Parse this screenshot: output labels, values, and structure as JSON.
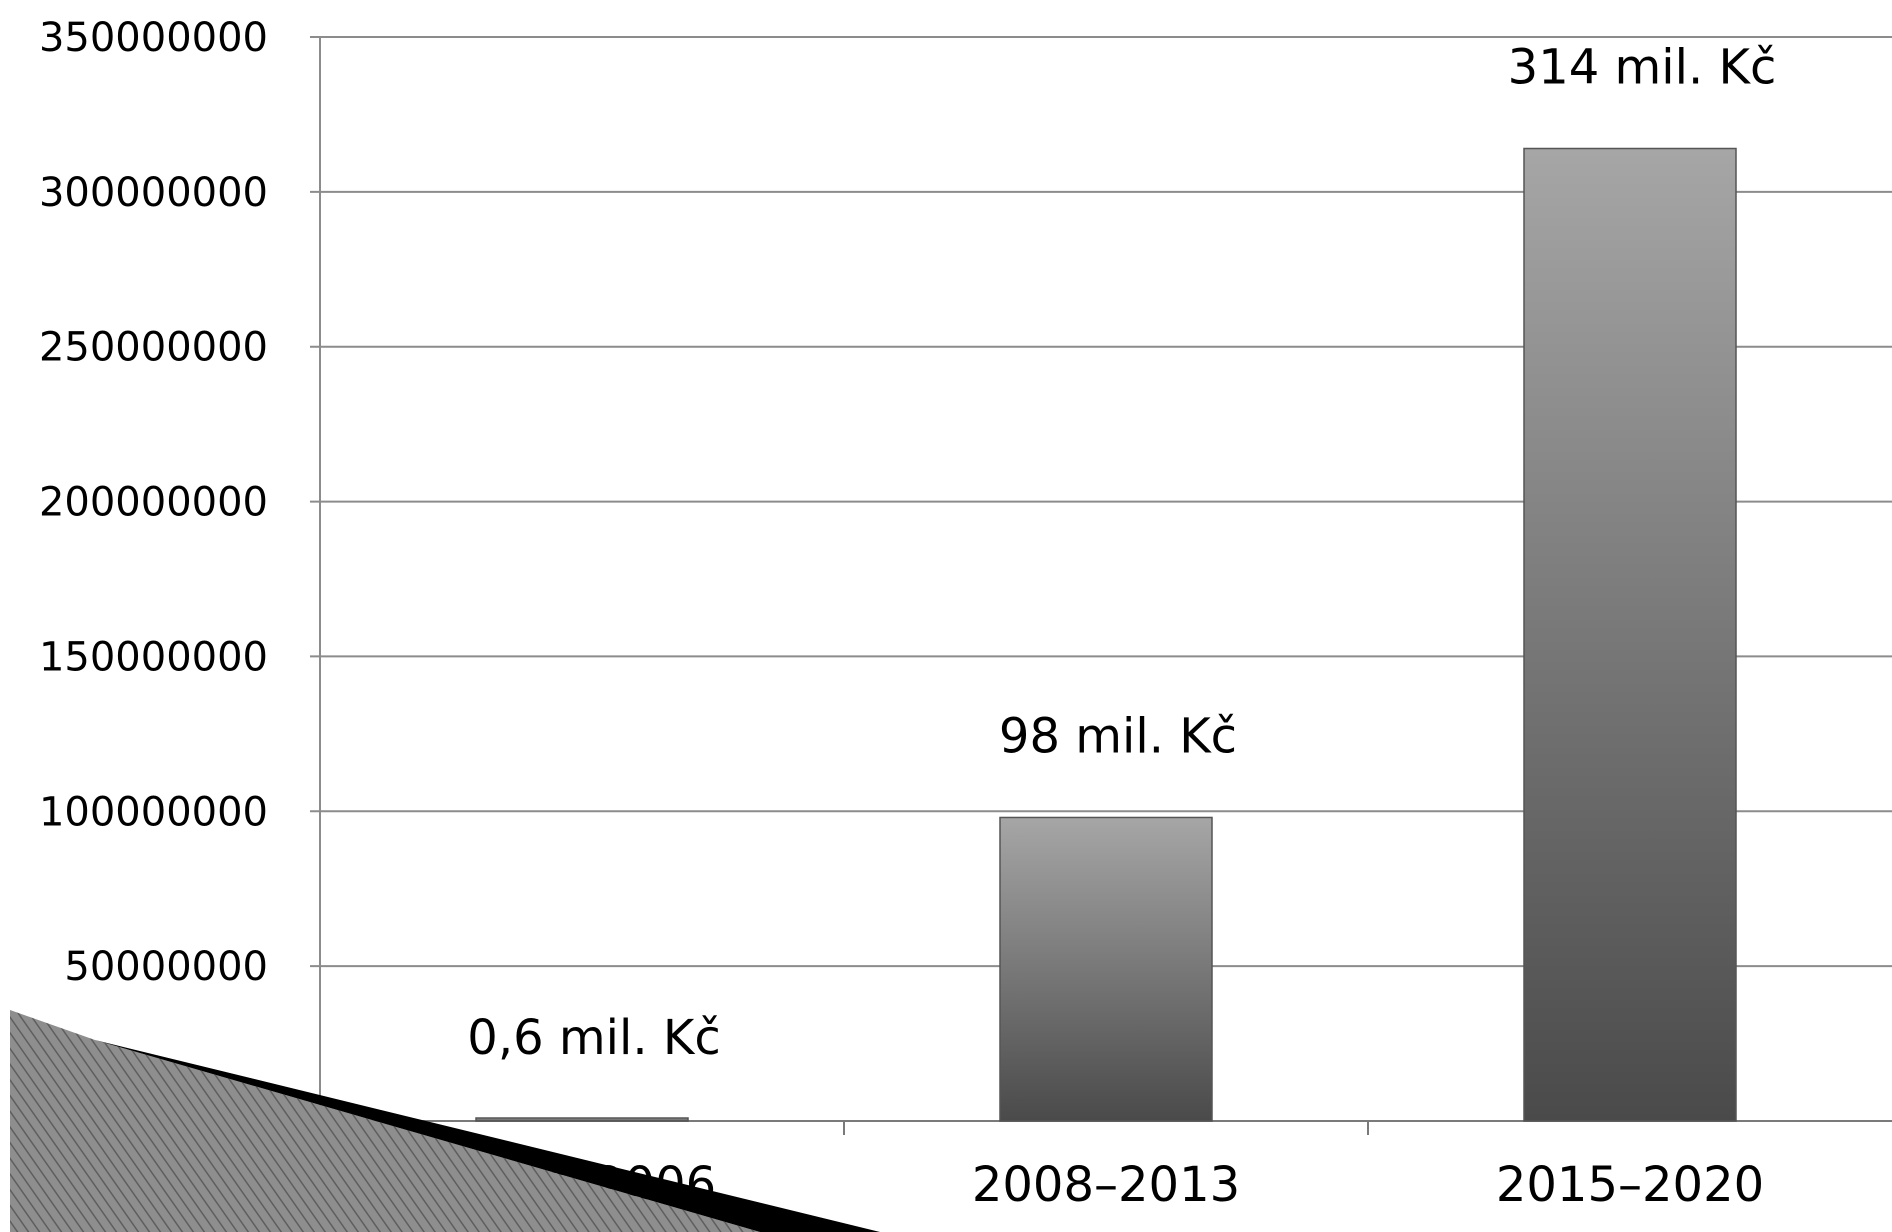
{
  "chart_data": {
    "type": "bar",
    "categories": [
      "2004–2006",
      "2008–2013",
      "2015–2020"
    ],
    "values": [
      600000,
      98000000,
      314000000
    ],
    "data_labels": [
      "0,6 mil. Kč",
      "98 mil. Kč",
      "314 mil. Kč"
    ],
    "ylim": [
      0,
      350000000
    ],
    "yticks": [
      "0",
      "50000000",
      "100000000",
      "150000000",
      "200000000",
      "250000000",
      "300000000",
      "350000000"
    ],
    "ytick_values": [
      0,
      50000000,
      100000000,
      150000000,
      200000000,
      250000000,
      300000000,
      350000000
    ],
    "grid": true,
    "legend": "none",
    "bar_gradient": [
      "#a6a6a6",
      "#4a4a4a"
    ],
    "grid_color": "#8c8c8c"
  }
}
